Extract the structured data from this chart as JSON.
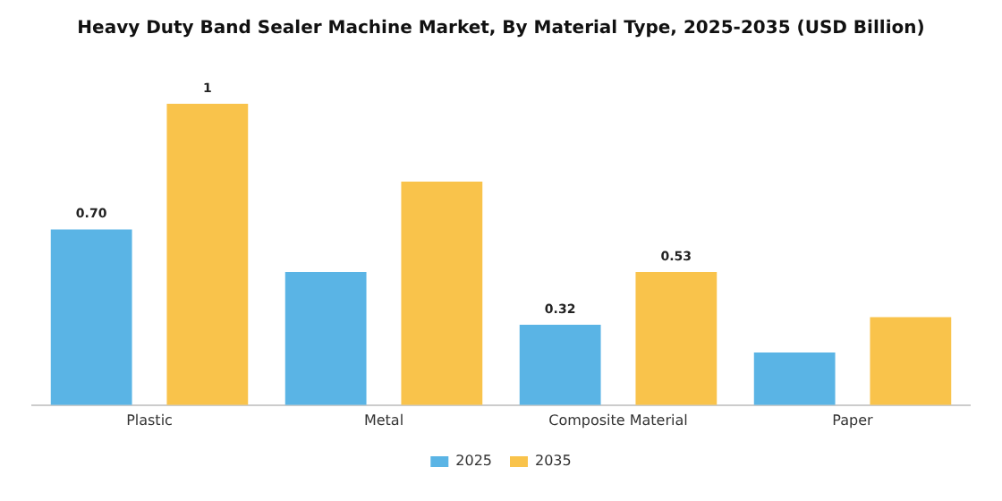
{
  "chart_data": {
    "type": "bar",
    "title": "Heavy Duty Band Sealer Machine Market, By Material Type, 2025-2035 (USD Billion)",
    "categories": [
      "Plastic",
      "Metal",
      "Composite Material",
      "Paper"
    ],
    "series": [
      {
        "name": "2025",
        "color": "#5ab4e5",
        "values": [
          0.7,
          0.53,
          0.32,
          0.21
        ],
        "value_labels": [
          "0.70",
          null,
          "0.32",
          null
        ]
      },
      {
        "name": "2035",
        "color": "#f9c34b",
        "values": [
          1.2,
          0.89,
          0.53,
          0.35
        ],
        "value_labels": [
          "1",
          null,
          "0.53",
          null
        ]
      }
    ],
    "legend": "bottom",
    "grid": false
  }
}
